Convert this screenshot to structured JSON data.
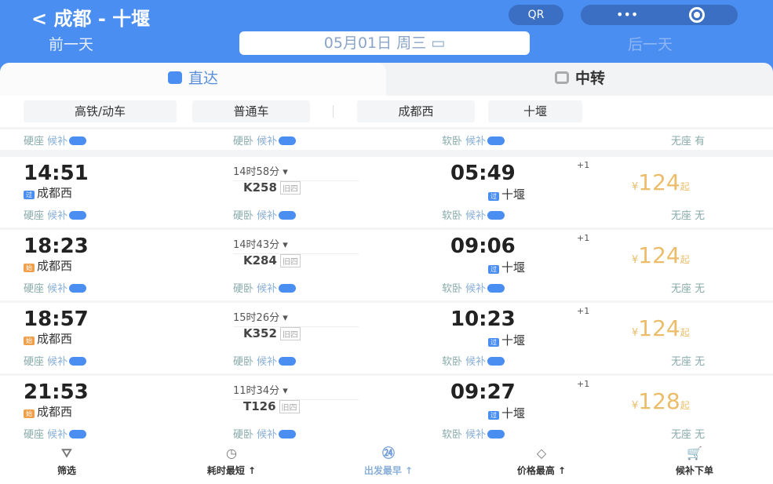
{
  "header": {
    "title": "< 成都 - 十堰",
    "prev_day": "前一天",
    "date": "05月01日 周三",
    "next_day": "后一天",
    "qr_label": "QR",
    "more_label": "•••"
  },
  "tabs": [
    {
      "label": "直达",
      "active": true
    },
    {
      "label": "中转",
      "active": false
    }
  ],
  "filters": [
    "高铁/动车",
    "普通车",
    "成都西",
    "十堰"
  ],
  "summary_seats": [
    {
      "type": "硬座",
      "status": "候补"
    },
    {
      "type": "硬卧",
      "status": "候补"
    },
    {
      "type": "软卧",
      "status": "候补"
    },
    {
      "type": "无座",
      "status": "有"
    }
  ],
  "trains": [
    {
      "dep": "14:51",
      "dep_station": "成都西",
      "dep_badge": "过",
      "dep_badge_color": "#4b8ef1",
      "duration": "14时58分 ▾",
      "code": "K258",
      "arr": "05:49",
      "day_offset": "+1",
      "arr_station": "十堰",
      "arr_badge": "过",
      "price_symbol": "¥",
      "price": "124",
      "price_suffix": "起",
      "seats": [
        {
          "type": "硬座",
          "status": "候补"
        },
        {
          "type": "硬卧",
          "status": "候补"
        },
        {
          "type": "软卧",
          "status": "候补"
        },
        {
          "type": "无座",
          "status": "无"
        }
      ]
    },
    {
      "dep": "18:23",
      "dep_station": "成都西",
      "dep_badge": "始",
      "dep_badge_color": "#f0a04b",
      "duration": "14时43分 ▾",
      "code": "K284",
      "arr": "09:06",
      "day_offset": "+1",
      "arr_station": "十堰",
      "arr_badge": "过",
      "price_symbol": "¥",
      "price": "124",
      "price_suffix": "起",
      "seats": [
        {
          "type": "硬座",
          "status": "候补"
        },
        {
          "type": "硬卧",
          "status": "候补"
        },
        {
          "type": "软卧",
          "status": "候补"
        },
        {
          "type": "无座",
          "status": "无"
        }
      ]
    },
    {
      "dep": "18:57",
      "dep_station": "成都西",
      "dep_badge": "始",
      "dep_badge_color": "#f0a04b",
      "duration": "15时26分 ▾",
      "code": "K352",
      "arr": "10:23",
      "day_offset": "+1",
      "arr_station": "十堰",
      "arr_badge": "过",
      "price_symbol": "¥",
      "price": "124",
      "price_suffix": "起",
      "seats": [
        {
          "type": "硬座",
          "status": "候补"
        },
        {
          "type": "硬卧",
          "status": "候补"
        },
        {
          "type": "软卧",
          "status": "候补"
        },
        {
          "type": "无座",
          "status": "无"
        }
      ]
    },
    {
      "dep": "21:53",
      "dep_station": "成都西",
      "dep_badge": "始",
      "dep_badge_color": "#f0a04b",
      "duration": "11时34分 ▾",
      "code": "T126",
      "arr": "09:27",
      "day_offset": "+1",
      "arr_station": "十堰",
      "arr_badge": "过",
      "price_symbol": "¥",
      "price": "128",
      "price_suffix": "起",
      "seats": [
        {
          "type": "硬座",
          "status": "候补"
        },
        {
          "type": "硬卧",
          "status": "候补"
        },
        {
          "type": "软卧",
          "status": "候补"
        },
        {
          "type": "无座",
          "status": "无"
        }
      ]
    }
  ],
  "bottom_bar": [
    {
      "label": "筛选",
      "icon": "filter-icon",
      "glyph": "⛛"
    },
    {
      "label": "耗时最短 ↑",
      "icon": "timer-icon",
      "glyph": "◷"
    },
    {
      "label": "出发最早 ↑",
      "icon": "clock-24-icon",
      "glyph": "㉔",
      "active": true
    },
    {
      "label": "价格最高 ↑",
      "icon": "price-tag-icon",
      "glyph": "◇"
    },
    {
      "label": "候补下单",
      "icon": "cart-icon",
      "glyph": "🛒"
    }
  ],
  "colors": {
    "primary": "#4b8ef1",
    "price": "#ebbd6a",
    "start_badge": "#f0a04b"
  }
}
